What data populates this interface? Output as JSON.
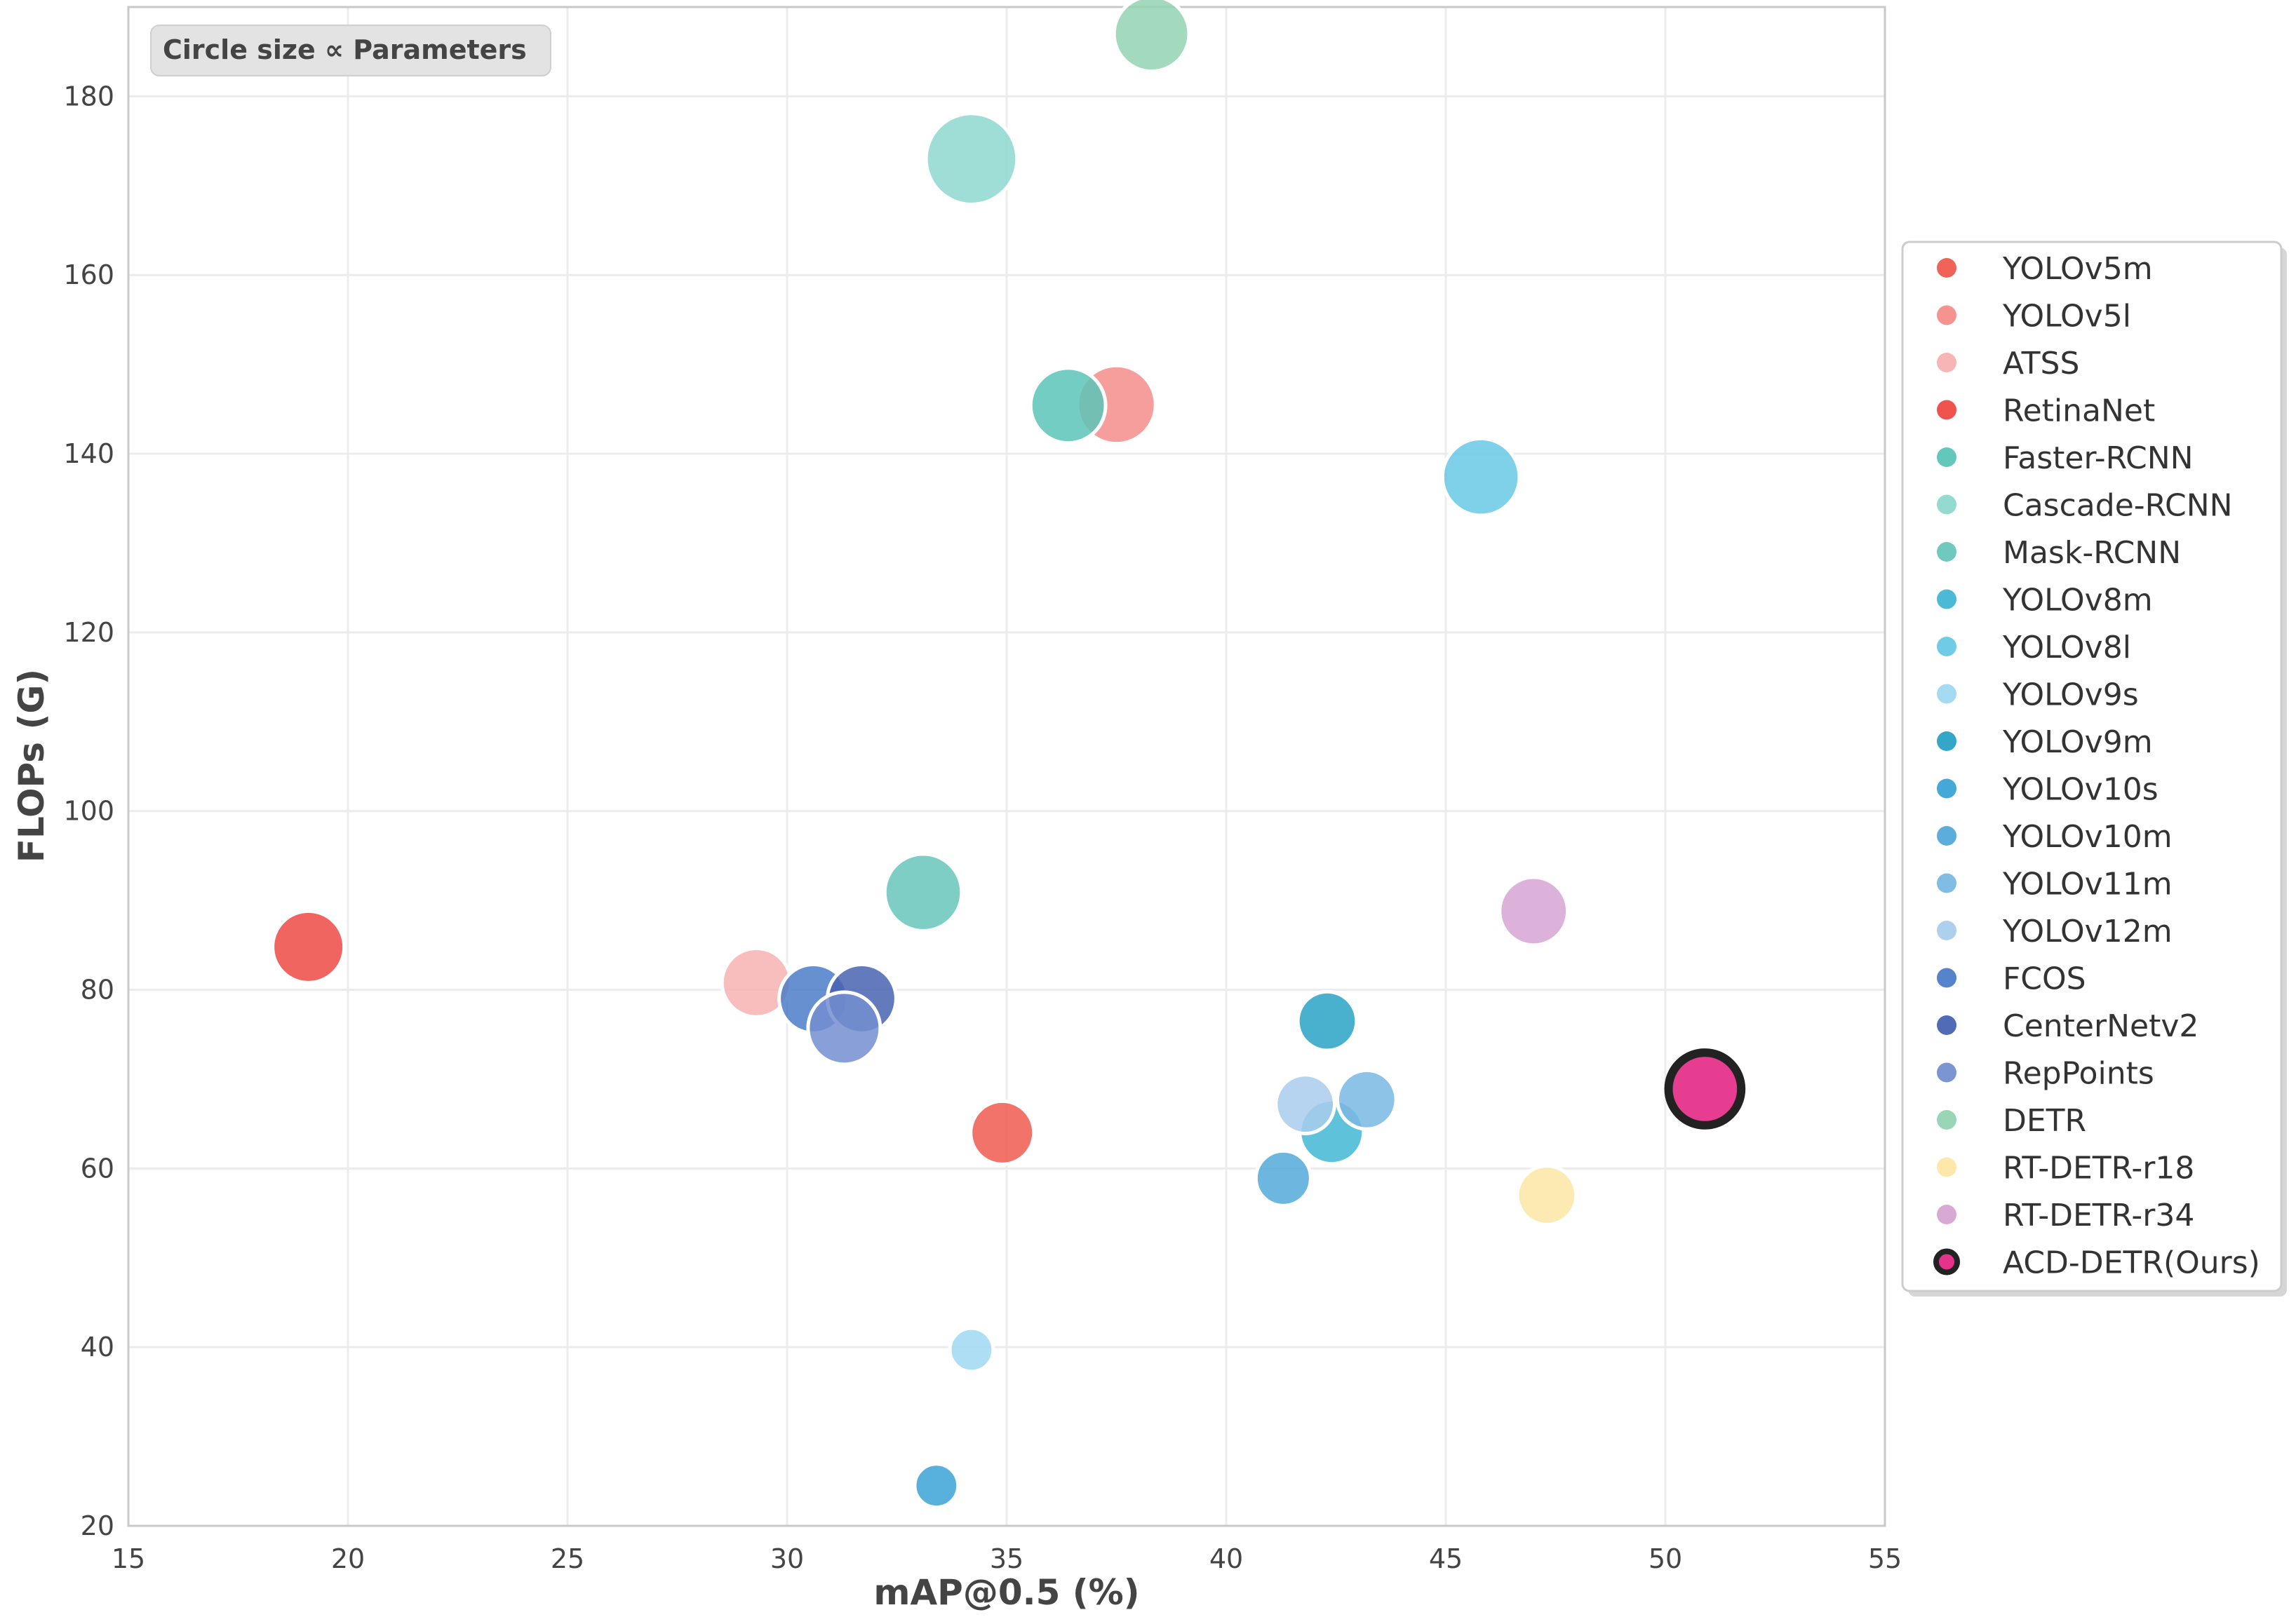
{
  "chart_data": {
    "type": "scatter",
    "xlabel": "mAP@0.5 (%)",
    "ylabel": "FLOPs (G)",
    "xlim": [
      15,
      55
    ],
    "ylim": [
      20,
      190
    ],
    "xticks": [
      15,
      20,
      25,
      30,
      35,
      40,
      45,
      50,
      55
    ],
    "yticks": [
      20,
      40,
      60,
      80,
      100,
      120,
      140,
      160,
      180
    ],
    "grid": true,
    "annotation": "Circle size ∝ Parameters",
    "legend_position": "right",
    "size_encoding": "Parameters",
    "series": [
      {
        "name": "YOLOv5m",
        "color": "#ef5b4f",
        "x": 34.9,
        "y": 64.0,
        "size": 25
      },
      {
        "name": "YOLOv5l",
        "color": "#f48d8b",
        "x": 37.5,
        "y": 145.5,
        "size": 46
      },
      {
        "name": "ATSS",
        "color": "#f7b1b1",
        "x": 29.3,
        "y": 80.8,
        "size": 32
      },
      {
        "name": "RetinaNet",
        "color": "#ef4a44",
        "x": 19.1,
        "y": 84.8,
        "size": 36
      },
      {
        "name": "Faster-RCNN",
        "color": "#5cc4b7",
        "x": 36.4,
        "y": 145.4,
        "size": 41
      },
      {
        "name": "Cascade-RCNN",
        "color": "#8ed8cf",
        "x": 34.2,
        "y": 173.0,
        "size": 69
      },
      {
        "name": "Mask-RCNN",
        "color": "#68c6bc",
        "x": 33.1,
        "y": 90.9,
        "size": 44
      },
      {
        "name": "YOLOv8m",
        "color": "#41b7d3",
        "x": 42.4,
        "y": 64.1,
        "size": 26
      },
      {
        "name": "YOLOv8l",
        "color": "#68c8e5",
        "x": 45.8,
        "y": 137.4,
        "size": 44
      },
      {
        "name": "YOLOv9s",
        "color": "#9fd8f1",
        "x": 34.2,
        "y": 39.7,
        "size": 7
      },
      {
        "name": "YOLOv9m",
        "color": "#29a2c6",
        "x": 42.3,
        "y": 76.5,
        "size": 20
      },
      {
        "name": "YOLOv10s",
        "color": "#3aa3d6",
        "x": 33.4,
        "y": 24.5,
        "size": 7
      },
      {
        "name": "YOLOv10m",
        "color": "#53a9d9",
        "x": 41.3,
        "y": 58.9,
        "size": 16
      },
      {
        "name": "YOLOv11m",
        "color": "#7ab8e4",
        "x": 43.2,
        "y": 67.7,
        "size": 20
      },
      {
        "name": "YOLOv12m",
        "color": "#a9cdec",
        "x": 41.8,
        "y": 67.2,
        "size": 20
      },
      {
        "name": "FCOS",
        "color": "#4c7dc9",
        "x": 30.6,
        "y": 79.0,
        "size": 32
      },
      {
        "name": "CenterNetv2",
        "color": "#4863b2",
        "x": 31.7,
        "y": 79.0,
        "size": 32
      },
      {
        "name": "RepPoints",
        "color": "#738fd0",
        "x": 31.3,
        "y": 75.7,
        "size": 37
      },
      {
        "name": "DETR",
        "color": "#93d4b2",
        "x": 38.3,
        "y": 187.0,
        "size": 41
      },
      {
        "name": "RT-DETR-r18",
        "color": "#fde6a4",
        "x": 47.3,
        "y": 57.0,
        "size": 20
      },
      {
        "name": "RT-DETR-r34",
        "color": "#d7a4d3",
        "x": 47.0,
        "y": 88.8,
        "size": 31
      },
      {
        "name": "ACD-DETR(Ours)",
        "color": "#e6338a",
        "edge": "#222222",
        "x": 50.9,
        "y": 68.9,
        "size": 20
      }
    ]
  }
}
